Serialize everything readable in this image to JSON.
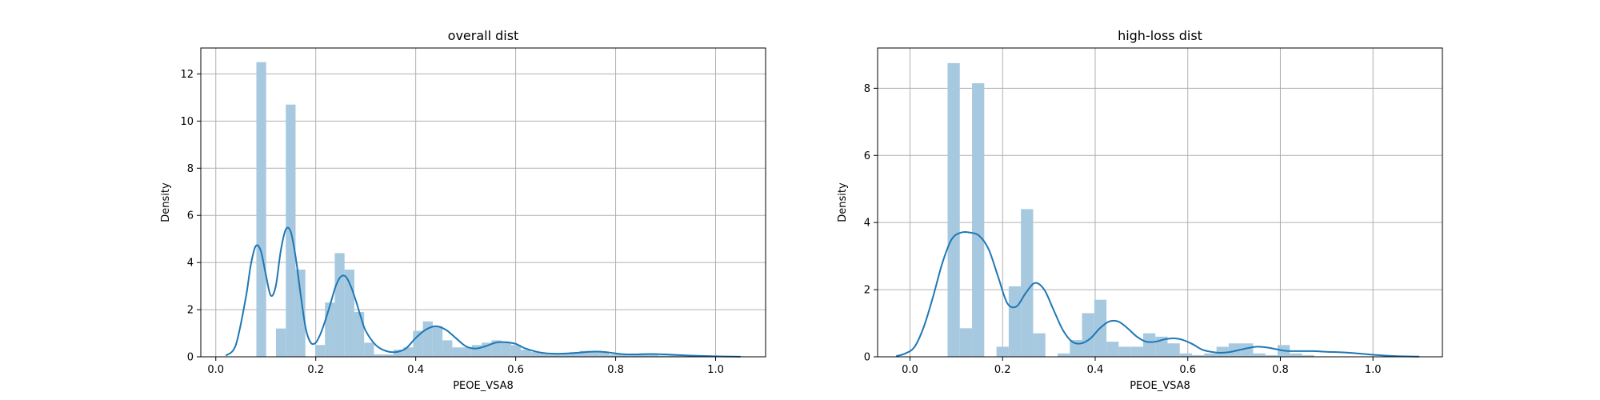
{
  "figure": {
    "background": "#ffffff"
  },
  "style": {
    "bar_color": "#a6c9e0",
    "kde_color": "#1f77b4",
    "grid_color": "#b0b0b0",
    "axes_color": "#000000"
  },
  "chart_data": [
    {
      "type": "bar",
      "title": "overall dist",
      "xlabel": "PEOE_VSA8",
      "ylabel": "Density",
      "xlim": [
        -0.03,
        1.1
      ],
      "ylim": [
        0,
        13.1
      ],
      "xticks": [
        0.0,
        0.2,
        0.4,
        0.6,
        0.8,
        1.0
      ],
      "xtick_labels": [
        "0.0",
        "0.2",
        "0.4",
        "0.6",
        "0.8",
        "1.0"
      ],
      "yticks": [
        0,
        2,
        4,
        6,
        8,
        10,
        12
      ],
      "ytick_labels": [
        "0",
        "2",
        "4",
        "6",
        "8",
        "10",
        "12"
      ],
      "grid": true,
      "histogram": {
        "bin_start": 0.0812,
        "bin_width": 0.0196,
        "values": [
          12.5,
          0,
          1.2,
          10.7,
          3.7,
          0,
          0.5,
          2.3,
          4.4,
          3.7,
          1.9,
          0.6,
          0.1,
          0.1,
          0.3,
          0.4,
          1.1,
          1.5,
          1.3,
          0.7,
          0.4,
          0.4,
          0.5,
          0.6,
          0.7,
          0.6,
          0.5,
          0.3,
          0.2,
          0.15,
          0.15,
          0.15,
          0.2,
          0.25,
          0.25,
          0.2,
          0.1,
          0.1,
          0.1,
          0.15,
          0.1,
          0.05,
          0.05,
          0.05,
          0.05,
          0.03,
          0.03,
          0.03,
          0.02,
          0.02
        ]
      },
      "kde": {
        "x": [
          0.02,
          0.04,
          0.06,
          0.07,
          0.08,
          0.09,
          0.1,
          0.11,
          0.12,
          0.13,
          0.14,
          0.15,
          0.16,
          0.17,
          0.18,
          0.19,
          0.2,
          0.21,
          0.22,
          0.23,
          0.24,
          0.25,
          0.26,
          0.27,
          0.28,
          0.29,
          0.3,
          0.32,
          0.34,
          0.36,
          0.38,
          0.4,
          0.42,
          0.44,
          0.46,
          0.48,
          0.5,
          0.52,
          0.54,
          0.56,
          0.58,
          0.6,
          0.62,
          0.65,
          0.68,
          0.71,
          0.74,
          0.76,
          0.78,
          0.81,
          0.84,
          0.87,
          0.9,
          0.95,
          1.0,
          1.05
        ],
        "y": [
          0.05,
          0.5,
          2.5,
          3.9,
          4.7,
          4.5,
          3.5,
          2.6,
          3.0,
          4.5,
          5.4,
          5.3,
          4.2,
          2.6,
          1.2,
          0.6,
          0.6,
          1.0,
          1.6,
          2.3,
          3.0,
          3.4,
          3.4,
          3.0,
          2.4,
          1.7,
          1.1,
          0.5,
          0.25,
          0.2,
          0.35,
          0.8,
          1.15,
          1.3,
          1.15,
          0.8,
          0.45,
          0.35,
          0.45,
          0.6,
          0.62,
          0.55,
          0.35,
          0.18,
          0.13,
          0.15,
          0.2,
          0.22,
          0.2,
          0.12,
          0.1,
          0.12,
          0.1,
          0.05,
          0.02,
          0.005
        ]
      }
    },
    {
      "type": "bar",
      "title": "high-loss dist",
      "xlabel": "PEOE_VSA8",
      "ylabel": "Density",
      "xlim": [
        -0.07,
        1.15
      ],
      "ylim": [
        0,
        9.2
      ],
      "xticks": [
        0.0,
        0.2,
        0.4,
        0.6,
        0.8,
        1.0
      ],
      "xtick_labels": [
        "0.0",
        "0.2",
        "0.4",
        "0.6",
        "0.8",
        "1.0"
      ],
      "yticks": [
        0,
        2,
        4,
        6,
        8
      ],
      "ytick_labels": [
        "0",
        "2",
        "4",
        "6",
        "8"
      ],
      "grid": true,
      "histogram": {
        "bin_start": 0.0812,
        "bin_width": 0.0264,
        "values": [
          8.75,
          0.85,
          8.15,
          0,
          0.3,
          2.1,
          4.4,
          0.7,
          0,
          0.1,
          0.5,
          1.3,
          1.7,
          0.45,
          0.3,
          0.3,
          0.7,
          0.6,
          0.4,
          0.1,
          0.05,
          0.1,
          0.3,
          0.4,
          0.4,
          0.1,
          0.05,
          0.35,
          0.1,
          0.05
        ]
      },
      "kde": {
        "x": [
          -0.03,
          -0.01,
          0.01,
          0.03,
          0.05,
          0.07,
          0.09,
          0.11,
          0.13,
          0.15,
          0.17,
          0.19,
          0.21,
          0.23,
          0.25,
          0.27,
          0.29,
          0.31,
          0.33,
          0.35,
          0.37,
          0.39,
          0.41,
          0.43,
          0.45,
          0.47,
          0.49,
          0.51,
          0.53,
          0.55,
          0.57,
          0.59,
          0.61,
          0.63,
          0.65,
          0.67,
          0.69,
          0.71,
          0.73,
          0.75,
          0.77,
          0.79,
          0.81,
          0.83,
          0.85,
          0.87,
          0.9,
          0.95,
          1.0,
          1.05,
          1.1
        ],
        "y": [
          0.02,
          0.1,
          0.3,
          0.9,
          1.8,
          2.8,
          3.5,
          3.7,
          3.7,
          3.6,
          3.2,
          2.4,
          1.6,
          1.5,
          1.9,
          2.2,
          2.0,
          1.4,
          0.8,
          0.45,
          0.4,
          0.55,
          0.85,
          1.05,
          1.05,
          0.85,
          0.6,
          0.45,
          0.45,
          0.52,
          0.55,
          0.5,
          0.38,
          0.22,
          0.15,
          0.12,
          0.14,
          0.2,
          0.26,
          0.3,
          0.28,
          0.23,
          0.18,
          0.17,
          0.17,
          0.17,
          0.15,
          0.12,
          0.06,
          0.02,
          0.005
        ]
      }
    }
  ]
}
